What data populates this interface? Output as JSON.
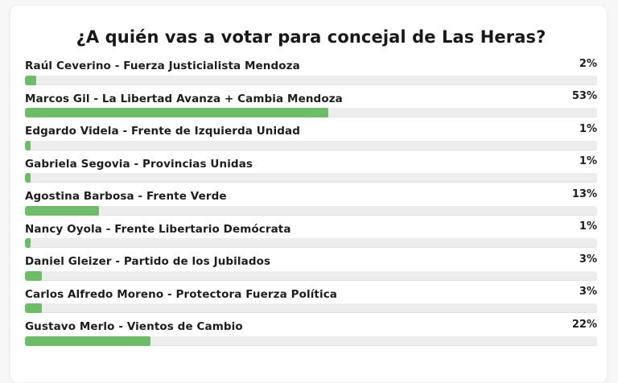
{
  "page": {
    "background_color": "#f7f7f7"
  },
  "card": {
    "background_color": "#ffffff",
    "border_color": "#f0f0f0"
  },
  "poll": {
    "title": "¿A quién vas a votar para concejal de Las Heras?",
    "colors": {
      "bar_fill": "#6ebc69",
      "bar_track": "#ededed",
      "text": "#1d1d1d"
    },
    "options": [
      {
        "label": "Raúl Ceverino - Fuerza Justicialista Mendoza",
        "percent_label": "2%",
        "percent": 2
      },
      {
        "label": "Marcos Gil - La Libertad Avanza + Cambia Mendoza",
        "percent_label": "53%",
        "percent": 53
      },
      {
        "label": "Edgardo Videla - Frente de Izquierda Unidad",
        "percent_label": "1%",
        "percent": 1
      },
      {
        "label": "Gabriela Segovia - Provincias Unidas",
        "percent_label": "1%",
        "percent": 1
      },
      {
        "label": "Agostina Barbosa - Frente Verde",
        "percent_label": "13%",
        "percent": 13
      },
      {
        "label": "Nancy Oyola - Frente Libertario Demócrata",
        "percent_label": "1%",
        "percent": 1
      },
      {
        "label": "Daniel Gleizer - Partido de los Jubilados",
        "percent_label": "3%",
        "percent": 3
      },
      {
        "label": "Carlos Alfredo Moreno - Protectora Fuerza Política",
        "percent_label": "3%",
        "percent": 3
      },
      {
        "label": "Gustavo Merlo - Vientos de Cambio",
        "percent_label": "22%",
        "percent": 22
      }
    ]
  },
  "chart_data": {
    "type": "bar",
    "orientation": "horizontal",
    "title": "¿A quién vas a votar para concejal de Las Heras?",
    "categories": [
      "Raúl Ceverino - Fuerza Justicialista Mendoza",
      "Marcos Gil - La Libertad Avanza + Cambia Mendoza",
      "Edgardo Videla - Frente de Izquierda Unidad",
      "Gabriela Segovia - Provincias Unidas",
      "Agostina Barbosa - Frente Verde",
      "Nancy Oyola - Frente Libertario Demócrata",
      "Daniel Gleizer - Partido de los Jubilados",
      "Carlos Alfredo Moreno - Protectora Fuerza Política",
      "Gustavo Merlo - Vientos de Cambio"
    ],
    "values": [
      2,
      53,
      1,
      1,
      13,
      1,
      3,
      3,
      22
    ],
    "value_labels": [
      "2%",
      "53%",
      "1%",
      "1%",
      "13%",
      "1%",
      "3%",
      "3%",
      "22%"
    ],
    "unit": "%",
    "xlim": [
      0,
      100
    ],
    "grid": false,
    "legend": false,
    "bar_color": "#6ebc69",
    "track_color": "#ededed"
  }
}
